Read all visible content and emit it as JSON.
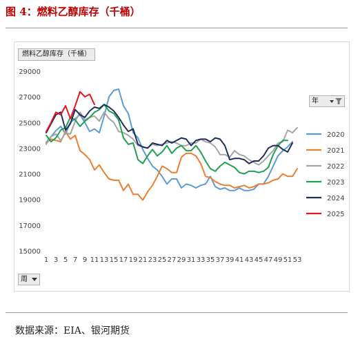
{
  "figure": {
    "title": "图 4：燃料乙醇库存（千桶）",
    "source": "数据来源：EIA、银河期货"
  },
  "pivot": {
    "value_field_label": "燃料乙醇库存（千桶）",
    "legend_field_label": "年",
    "legend_filter_icon": "filter-funnel-icon",
    "axis_field_label": "周",
    "axis_dropdown_icon": "dropdown-arrow-icon"
  },
  "chart_data": {
    "type": "line",
    "title": "",
    "xlabel": "",
    "ylabel": "",
    "x": [
      1,
      2,
      3,
      4,
      5,
      6,
      7,
      8,
      9,
      10,
      11,
      12,
      13,
      14,
      15,
      16,
      17,
      18,
      19,
      20,
      21,
      22,
      23,
      24,
      25,
      26,
      27,
      28,
      29,
      30,
      31,
      32,
      33,
      34,
      35,
      36,
      37,
      38,
      39,
      40,
      41,
      42,
      43,
      44,
      45,
      46,
      47,
      48,
      49,
      50,
      51,
      52,
      53
    ],
    "x_tick_labels": [
      "1",
      "3",
      "5",
      "7",
      "9",
      "11",
      "13",
      "15",
      "17",
      "19",
      "21",
      "23",
      "25",
      "27",
      "29",
      "31",
      "33",
      "35",
      "37",
      "39",
      "41",
      "43",
      "45",
      "47",
      "49",
      "51",
      "53"
    ],
    "ylim": [
      15000,
      29000
    ],
    "y_ticks": [
      15000,
      17000,
      19000,
      21000,
      23000,
      25000,
      27000,
      29000
    ],
    "grid": false,
    "legend_position": "right",
    "series": [
      {
        "name": "2020",
        "color": "#5b9bd5",
        "values": [
          23450,
          23900,
          24350,
          24700,
          24100,
          25000,
          25300,
          25600,
          25000,
          24300,
          24500,
          24200,
          25500,
          27000,
          27500,
          27600,
          26300,
          25700,
          24200,
          23800,
          22900,
          22200,
          21600,
          21300,
          20800,
          20200,
          20600,
          20600,
          19900,
          20200,
          20100,
          19900,
          20100,
          20200,
          20800,
          20000,
          19800,
          19900,
          19700,
          19700,
          19900,
          19700,
          19700,
          19800,
          20200,
          20200,
          20800,
          21600,
          22400,
          22800,
          23100,
          23500,
          null
        ]
      },
      {
        "name": "2021",
        "color": "#ed7d31",
        "values": [
          23400,
          23700,
          23600,
          23500,
          24300,
          23700,
          24000,
          22800,
          22500,
          22100,
          21300,
          21700,
          21100,
          20600,
          20500,
          20500,
          19700,
          20200,
          19400,
          19400,
          18950,
          19600,
          20100,
          20800,
          21600,
          21400,
          21100,
          21100,
          22300,
          22600,
          22600,
          22400,
          21800,
          20800,
          20700,
          20400,
          20200,
          20100,
          20100,
          19900,
          20000,
          20100,
          19900,
          20000,
          20200,
          20200,
          20300,
          20500,
          20600,
          21000,
          20800,
          20800,
          21400
        ]
      },
      {
        "name": "2022",
        "color": "#a5a5a5",
        "values": [
          23300,
          23900,
          24100,
          23600,
          24200,
          24100,
          25100,
          25800,
          25200,
          25400,
          25500,
          25100,
          25800,
          25300,
          25000,
          24300,
          24200,
          24000,
          23700,
          23200,
          23100,
          23000,
          23300,
          23200,
          23300,
          23400,
          23500,
          23400,
          23200,
          23200,
          23400,
          23400,
          23700,
          23500,
          23400,
          23100,
          22500,
          22500,
          22300,
          22800,
          22500,
          22400,
          22100,
          21900,
          21700,
          22000,
          22400,
          22800,
          23400,
          23500,
          24400,
          24200,
          24600
        ]
      },
      {
        "name": "2023",
        "color": "#1ea04e",
        "values": [
          24000,
          23500,
          23800,
          24400,
          24600,
          25400,
          25200,
          24700,
          25100,
          25400,
          25800,
          26000,
          26400,
          25900,
          25700,
          25200,
          23800,
          23300,
          23400,
          22100,
          21800,
          22400,
          22900,
          22400,
          22700,
          23200,
          22600,
          23000,
          23200,
          22800,
          22800,
          23200,
          22700,
          22000,
          21400,
          21200,
          21600,
          21900,
          21700,
          21500,
          21100,
          21000,
          21200,
          21200,
          21100,
          21200,
          21500,
          22500,
          23200,
          23600,
          23600,
          null,
          null
        ]
      },
      {
        "name": "2024",
        "color": "#1f2d5c",
        "values": [
          24200,
          24900,
          25600,
          25800,
          24400,
          24900,
          26000,
          25600,
          25400,
          25900,
          26200,
          26100,
          26400,
          26200,
          25900,
          25400,
          24800,
          24300,
          24500,
          23300,
          23100,
          23000,
          23400,
          23300,
          23200,
          23600,
          23400,
          23600,
          23800,
          23700,
          23200,
          23600,
          23700,
          23700,
          23500,
          23800,
          23700,
          23200,
          22100,
          22200,
          22200,
          22100,
          21800,
          22000,
          22000,
          22400,
          23000,
          23200,
          23200,
          22900,
          22700,
          23400,
          null
        ]
      },
      {
        "name": "2025",
        "color": "#e8141b",
        "values": [
          24300,
          25000,
          25800,
          25600,
          26300,
          25300,
          26300,
          27400,
          27000,
          27200,
          26400,
          null,
          null,
          null,
          null,
          null,
          null,
          null,
          null,
          null,
          null,
          null,
          null,
          null,
          null,
          null,
          null,
          null,
          null,
          null,
          null,
          null,
          null,
          null,
          null,
          null,
          null,
          null,
          null,
          null,
          null,
          null,
          null,
          null,
          null,
          null,
          null,
          null,
          null,
          null,
          null,
          null,
          null
        ]
      }
    ]
  }
}
